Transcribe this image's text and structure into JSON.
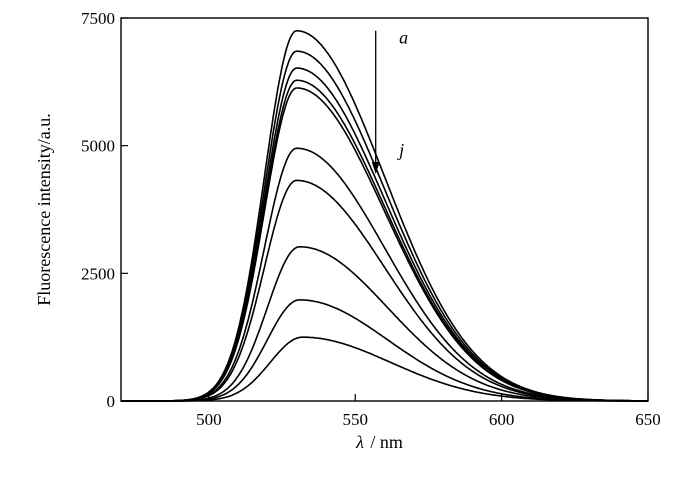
{
  "chart_data": {
    "type": "line",
    "title": "",
    "xlabel_symbol": "λ",
    "xlabel_unit": "/ nm",
    "ylabel": "Fluorescence intensity/a.u.",
    "xlim": [
      470,
      650
    ],
    "ylim": [
      0,
      7500
    ],
    "xticks": [
      500,
      550,
      600,
      650
    ],
    "yticks": [
      0,
      2500,
      5000,
      7500
    ],
    "grid": false,
    "legend": "none",
    "curve_shape": {
      "rise_width_nm": 11,
      "decay_width_nm": 30
    },
    "series": [
      {
        "label": "a",
        "peak_x": 530,
        "peak_y": 7250
      },
      {
        "peak_x": 530,
        "peak_y": 6850
      },
      {
        "peak_x": 530,
        "peak_y": 6520
      },
      {
        "peak_x": 530,
        "peak_y": 6280
      },
      {
        "peak_x": 530,
        "peak_y": 6130
      },
      {
        "peak_x": 530,
        "peak_y": 4950
      },
      {
        "peak_x": 530,
        "peak_y": 4320
      },
      {
        "peak_x": 531,
        "peak_y": 3020
      },
      {
        "peak_x": 531,
        "peak_y": 1980
      },
      {
        "label": "j",
        "peak_x": 532,
        "peak_y": 1250
      }
    ],
    "annotations": {
      "arrow_start_label": "a",
      "arrow_end_label": "j"
    }
  }
}
